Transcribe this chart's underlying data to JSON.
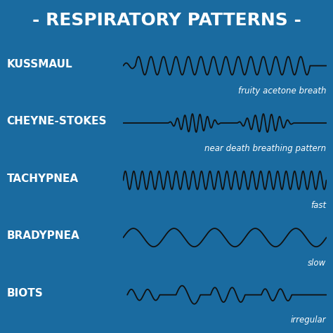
{
  "title": "- RESPIRATORY PATTERNS -",
  "background_color": "#1a6ba0",
  "line_color": "#111111",
  "text_color": "#ffffff",
  "title_fontsize": 18,
  "label_fontsize": 11,
  "desc_fontsize": 8.5,
  "patterns": [
    {
      "name": "KUSSMAUL",
      "desc": "fruity acetone breath",
      "type": "kussmaul"
    },
    {
      "name": "CHEYNE-STOKES",
      "desc": "near death breathing pattern",
      "type": "cheyne_stokes"
    },
    {
      "name": "TACHYPNEA",
      "desc": "fast",
      "type": "tachypnea"
    },
    {
      "name": "BRADYPNEA",
      "desc": "slow",
      "type": "bradypnea"
    },
    {
      "name": "BIOTS",
      "desc": "irregular",
      "type": "biots"
    }
  ]
}
